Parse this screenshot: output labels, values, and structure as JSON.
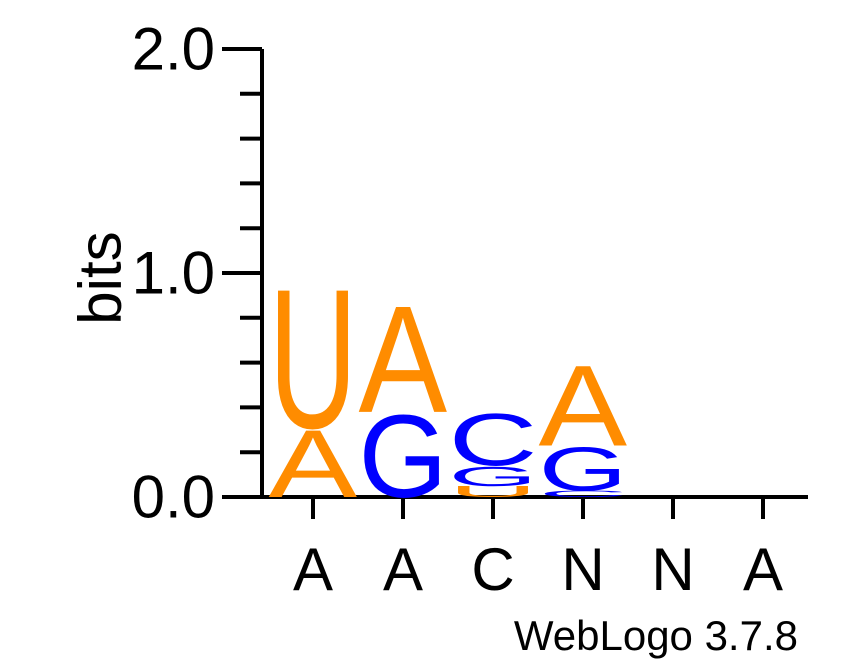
{
  "chart_data": {
    "type": "sequence-logo",
    "ylabel": "bits",
    "ylim": [
      0,
      2.0
    ],
    "y_ticks_labeled": [
      "0.0",
      "1.0",
      "2.0"
    ],
    "y_ticks_labeled_values": [
      0,
      1.0,
      2.0
    ],
    "y_minor_tick_step": 0.2,
    "x_labels": [
      "A",
      "A",
      "C",
      "N",
      "N",
      "A"
    ],
    "colors": {
      "U": "#ff8c00",
      "A": "#ff8c00",
      "G": "#0000ff",
      "C": "#0000ff"
    },
    "columns": [
      {
        "position": 1,
        "stack": [
          {
            "letter": "A",
            "bits": 0.31
          },
          {
            "letter": "U",
            "bits": 0.64
          }
        ]
      },
      {
        "position": 2,
        "stack": [
          {
            "letter": "G",
            "bits": 0.38
          },
          {
            "letter": "A",
            "bits": 0.49
          }
        ]
      },
      {
        "position": 3,
        "stack": [
          {
            "letter": "U",
            "bits": 0.05
          },
          {
            "letter": "G",
            "bits": 0.09
          },
          {
            "letter": "C",
            "bits": 0.24
          }
        ]
      },
      {
        "position": 4,
        "stack": [
          {
            "letter": "C",
            "bits": 0.03
          },
          {
            "letter": "G",
            "bits": 0.2
          },
          {
            "letter": "A",
            "bits": 0.37
          }
        ]
      },
      {
        "position": 5,
        "stack": []
      },
      {
        "position": 6,
        "stack": []
      }
    ],
    "credit": "WebLogo 3.7.8"
  }
}
